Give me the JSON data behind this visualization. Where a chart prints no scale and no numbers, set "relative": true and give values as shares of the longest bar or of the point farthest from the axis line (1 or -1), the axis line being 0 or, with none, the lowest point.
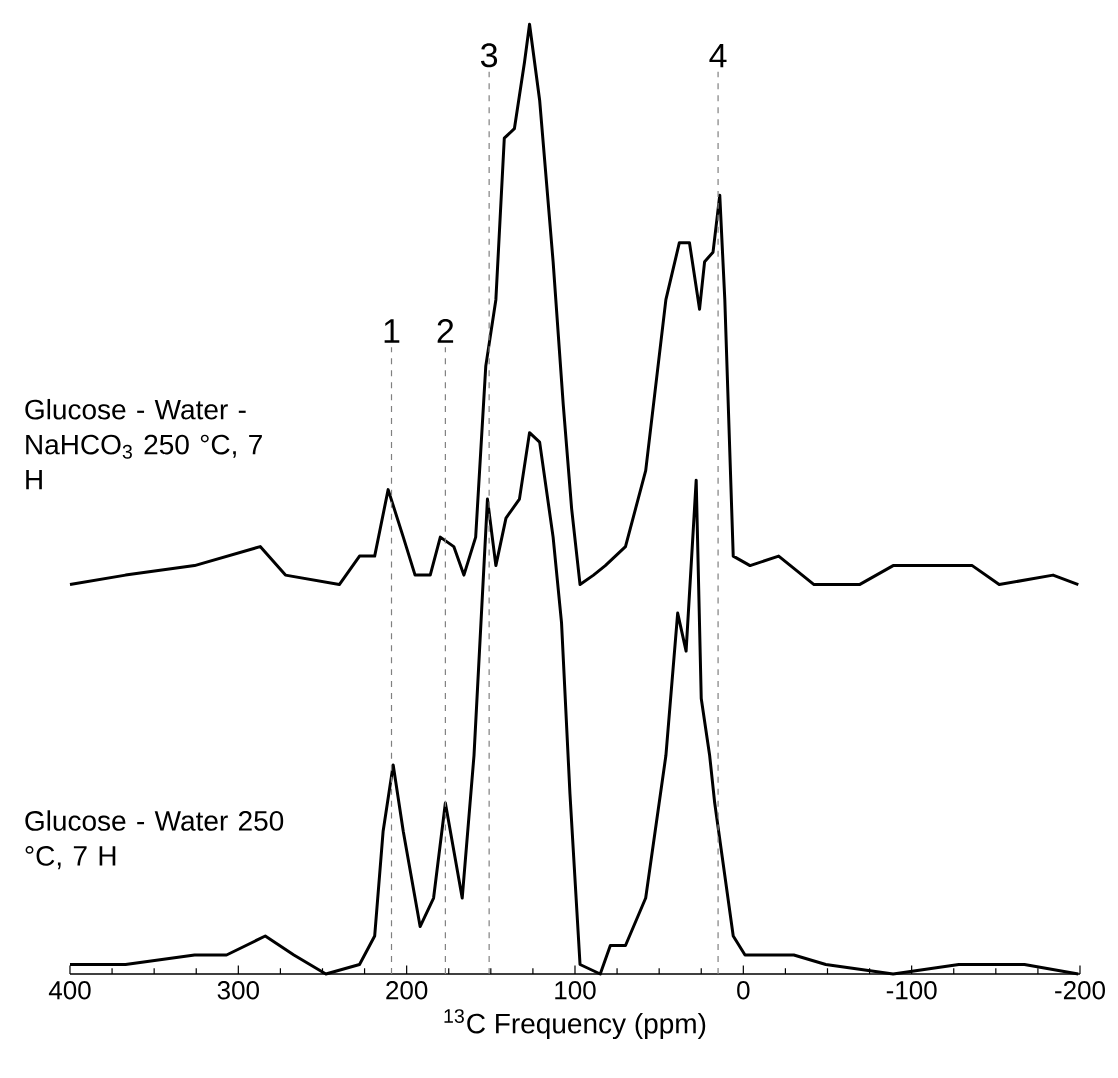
{
  "chart_data": {
    "type": "line",
    "relative": true,
    "xlabel": "$^{13}$C Frequency (ppm)",
    "xlim": [
      400,
      -200
    ],
    "xticks": [
      400,
      300,
      200,
      100,
      0,
      -100,
      -200
    ],
    "marker": "none",
    "line_style": "solid",
    "series": [
      {
        "name": "Glucose - Water -NaHCO$_{3}$ 250 °C, 7 H",
        "color": "#000000",
        "x": [
          400,
          367,
          326,
          287,
          272,
          240,
          228,
          219,
          211,
          202,
          195,
          186,
          180,
          172,
          166,
          159,
          153,
          147,
          142,
          136,
          130,
          127,
          121,
          113,
          107,
          102,
          97,
          89,
          82,
          70,
          58,
          46,
          38,
          32,
          26,
          23,
          18,
          14,
          11,
          6,
          -4,
          -21,
          -42,
          -69,
          -89,
          -113,
          -136,
          -152,
          -184,
          -199
        ],
        "values": [
          0.41,
          0.42,
          0.43,
          0.45,
          0.42,
          0.41,
          0.44,
          0.44,
          0.51,
          0.46,
          0.42,
          0.42,
          0.46,
          0.45,
          0.42,
          0.46,
          0.64,
          0.71,
          0.88,
          0.89,
          0.96,
          1.0,
          0.92,
          0.75,
          0.6,
          0.49,
          0.41,
          0.42,
          0.43,
          0.45,
          0.53,
          0.71,
          0.77,
          0.77,
          0.7,
          0.75,
          0.76,
          0.82,
          0.71,
          0.44,
          0.43,
          0.44,
          0.41,
          0.41,
          0.43,
          0.43,
          0.43,
          0.41,
          0.42,
          0.41
        ]
      },
      {
        "name": "Glucose - Water 250 °C, 7 H",
        "color": "#000000",
        "x": [
          400,
          367,
          326,
          307,
          284,
          267,
          248,
          228,
          219,
          214,
          208,
          202,
          192,
          184,
          177,
          172,
          167,
          160,
          152,
          147,
          141,
          133,
          127,
          121,
          113,
          108,
          103,
          97,
          85,
          79,
          70,
          58,
          46,
          39,
          34,
          28,
          25,
          20,
          17,
          6,
          -1,
          -30,
          -49,
          -89,
          -128,
          -167,
          -199
        ],
        "values": [
          0.01,
          0.01,
          0.02,
          0.02,
          0.04,
          0.02,
          0.0,
          0.01,
          0.04,
          0.15,
          0.22,
          0.15,
          0.05,
          0.08,
          0.18,
          0.13,
          0.08,
          0.23,
          0.5,
          0.43,
          0.48,
          0.5,
          0.57,
          0.56,
          0.46,
          0.37,
          0.19,
          0.01,
          0.0,
          0.03,
          0.03,
          0.08,
          0.23,
          0.38,
          0.34,
          0.52,
          0.29,
          0.23,
          0.18,
          0.04,
          0.02,
          0.02,
          0.01,
          0.0,
          0.01,
          0.01,
          0.0
        ]
      }
    ],
    "ref_lines": [
      {
        "axis": "x",
        "value": 209,
        "color": "#808080",
        "line_style": "dashed"
      },
      {
        "axis": "x",
        "value": 177,
        "color": "#808080",
        "line_style": "dashed"
      },
      {
        "axis": "x",
        "value": 151,
        "color": "#808080",
        "line_style": "dashed"
      },
      {
        "axis": "x",
        "value": 15,
        "color": "#808080",
        "line_style": "dashed"
      }
    ],
    "annotations": [
      {
        "text": "1",
        "x": 209,
        "y": 0.66
      },
      {
        "text": "2",
        "x": 177,
        "y": 0.66
      },
      {
        "text": "3",
        "x": 151,
        "y": 0.95
      },
      {
        "text": "4",
        "x": 15,
        "y": 0.95
      }
    ]
  }
}
